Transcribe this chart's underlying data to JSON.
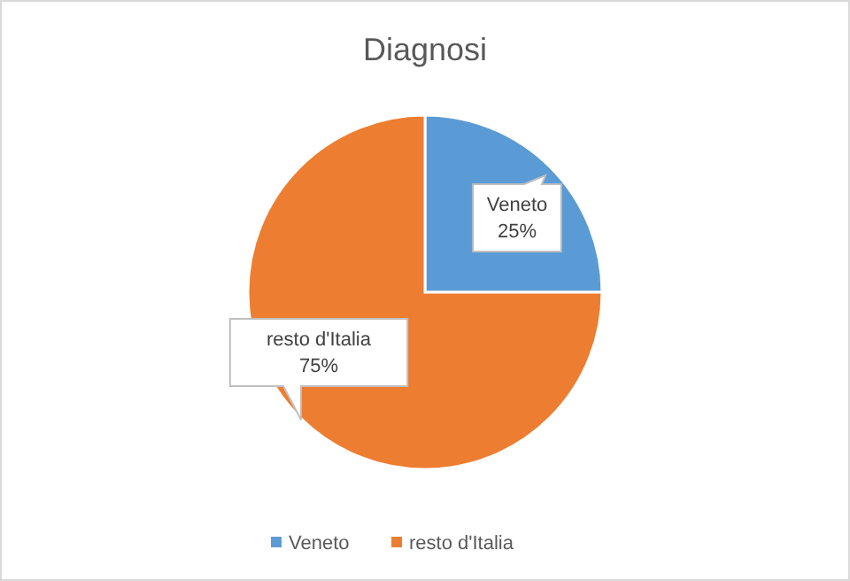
{
  "chart_data": {
    "type": "pie",
    "title": "Diagnosi",
    "categories": [
      "Veneto",
      "resto d'Italia"
    ],
    "values": [
      25,
      75
    ],
    "colors": [
      "#5b9bd5",
      "#ed7d31"
    ],
    "value_labels": [
      "25%",
      "75%"
    ],
    "legend": "bottom"
  }
}
